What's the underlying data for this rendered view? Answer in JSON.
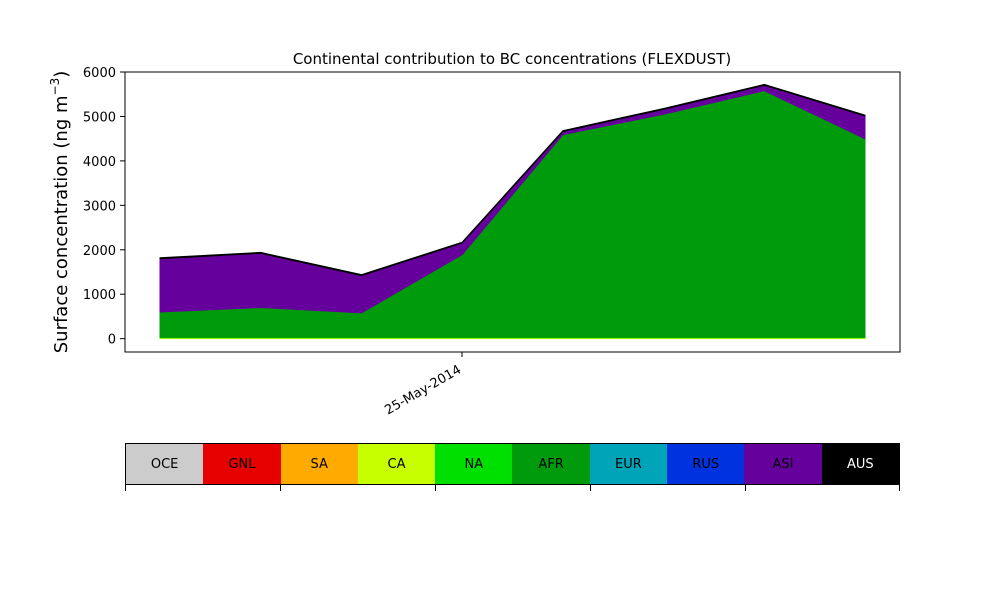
{
  "chart_data": {
    "type": "area",
    "title": "Continental contribution to BC concentrations (FLEXDUST)",
    "ylabel_main": "Surface concentration (ng m",
    "ylabel_exp": "−3",
    "ylabel_close": ")",
    "ylim": [
      -300,
      6000
    ],
    "yticks": [
      0,
      1000,
      2000,
      3000,
      4000,
      5000,
      6000
    ],
    "x_dates": [
      "2014-05-23",
      "2014-05-24",
      "2014-05-25",
      "2014-05-26",
      "2014-05-27",
      "2014-05-28",
      "2014-05-29",
      "2014-05-30"
    ],
    "x_tick_label": "25-May-2014",
    "stack_order": [
      "OCE",
      "GNL",
      "SA",
      "CA",
      "NA",
      "AFR",
      "EUR",
      "RUS",
      "ASI",
      "AUS"
    ],
    "series": [
      {
        "name": "OCE",
        "values": [
          0,
          0,
          0,
          0,
          0,
          0,
          0,
          0
        ]
      },
      {
        "name": "GNL",
        "values": [
          0,
          0,
          0,
          0,
          0,
          0,
          0,
          0
        ]
      },
      {
        "name": "SA",
        "values": [
          0,
          0,
          0,
          0,
          0,
          0,
          0,
          0
        ]
      },
      {
        "name": "CA",
        "values": [
          20,
          20,
          20,
          20,
          20,
          20,
          20,
          20
        ]
      },
      {
        "name": "NA",
        "values": [
          10,
          10,
          10,
          10,
          10,
          10,
          10,
          10
        ]
      },
      {
        "name": "AFR",
        "values": [
          570,
          670,
          550,
          1860,
          4560,
          5020,
          5550,
          4470
        ]
      },
      {
        "name": "EUR",
        "values": [
          0,
          0,
          0,
          0,
          0,
          0,
          0,
          0
        ]
      },
      {
        "name": "RUS",
        "values": [
          0,
          0,
          0,
          0,
          0,
          0,
          0,
          0
        ]
      },
      {
        "name": "ASI",
        "values": [
          1200,
          1220,
          840,
          260,
          70,
          110,
          120,
          510
        ]
      },
      {
        "name": "AUS",
        "values": [
          20,
          20,
          20,
          20,
          20,
          20,
          20,
          20
        ]
      }
    ],
    "legend": [
      {
        "label": "OCE",
        "color": "#cccccc"
      },
      {
        "label": "GNL",
        "color": "#e60000"
      },
      {
        "label": "SA",
        "color": "#ffaa00"
      },
      {
        "label": "CA",
        "color": "#c8ff00"
      },
      {
        "label": "NA",
        "color": "#00e000"
      },
      {
        "label": "AFR",
        "color": "#009a0d"
      },
      {
        "label": "EUR",
        "color": "#00a4b8"
      },
      {
        "label": "RUS",
        "color": "#0033e0"
      },
      {
        "label": "ASI",
        "color": "#66009c"
      },
      {
        "label": "AUS",
        "color": "#000000"
      }
    ],
    "legend_text_colors": [
      "#000000",
      "#000000",
      "#000000",
      "#000000",
      "#000000",
      "#000000",
      "#000000",
      "#000000",
      "#000000",
      "#ffffff"
    ],
    "grid": false,
    "legend_placement": "bottom"
  }
}
